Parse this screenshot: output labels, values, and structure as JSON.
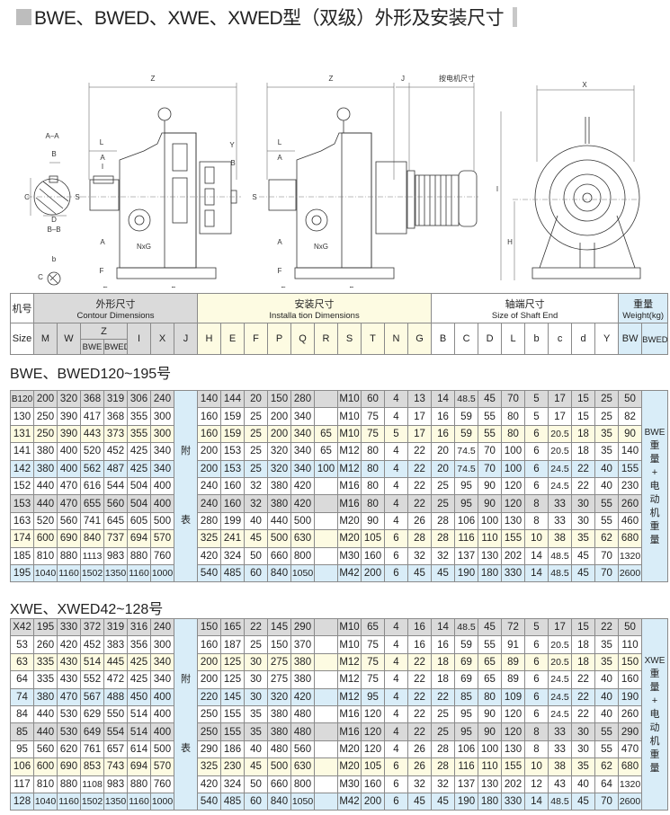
{
  "title": "BWE、BWED、XWE、XWED型（双级）外形及安装尺寸",
  "diagram": {
    "labels": {
      "Z": "Z",
      "J": "J",
      "motor_dims": "按电机尺寸",
      "X": "X",
      "AA": "A–A",
      "BB": "B–B",
      "B": "B",
      "C": "C",
      "D": "D",
      "b": "b",
      "c": "C",
      "d": "d",
      "L": "L",
      "A": "A",
      "I": "I",
      "S": "S",
      "Y": "Y",
      "NxG": "NxG",
      "E": "E",
      "F": "F",
      "P": "P",
      "R": "R",
      "M": "M",
      "H": "H",
      "Q": "Q",
      "T": "T",
      "W": "W"
    }
  },
  "header": {
    "model_cn": "机号",
    "contour_cn": "外形尺寸",
    "contour_en": "Contour Dimensions",
    "install_cn": "安装尺寸",
    "install_en": "Installa tion Dimensions",
    "shaft_cn": "轴端尺寸",
    "shaft_en": "Size of Shaft End",
    "weight_cn": "重量",
    "weight_en": "Weight(kg)",
    "size": "Size",
    "contour_cols": [
      "M",
      "W"
    ],
    "z": "Z",
    "z_sub": [
      "BWE",
      "BWED"
    ],
    "contour_cols2": [
      "I",
      "X",
      "J"
    ],
    "install_cols": [
      "H",
      "E",
      "F",
      "P",
      "Q",
      "R",
      "S",
      "T",
      "N",
      "G"
    ],
    "shaft_cols": [
      "B",
      "C",
      "D",
      "L",
      "b",
      "c",
      "d",
      "Y"
    ],
    "weight_bw": "BW",
    "weight_bwed": "BWED约"
  },
  "tables": [
    {
      "section_title": "BWE、BWED120~195号",
      "j_note": [
        "附",
        "表"
      ],
      "side_note": [
        "BWE",
        "重",
        "量",
        "+",
        "电",
        "动",
        "机",
        "重",
        "量"
      ],
      "row_colors": [
        "g",
        "w",
        "y",
        "w",
        "b",
        "w",
        "g",
        "w",
        "y",
        "w",
        "b"
      ],
      "rows": [
        [
          "B120",
          "200",
          "320",
          "368",
          "319",
          "306",
          "240",
          "140",
          "144",
          "20",
          "150",
          "280",
          "",
          "M10",
          "60",
          "4",
          "13",
          "14",
          "48.5",
          "45",
          "70",
          "5",
          "17",
          "15",
          "25",
          "50"
        ],
        [
          "130",
          "250",
          "390",
          "417",
          "368",
          "355",
          "300",
          "160",
          "159",
          "25",
          "200",
          "340",
          "",
          "M10",
          "75",
          "4",
          "17",
          "16",
          "59",
          "55",
          "80",
          "5",
          "17",
          "15",
          "25",
          "82"
        ],
        [
          "131",
          "250",
          "390",
          "443",
          "373",
          "355",
          "300",
          "160",
          "159",
          "25",
          "200",
          "340",
          "65",
          "M10",
          "75",
          "5",
          "17",
          "16",
          "59",
          "55",
          "80",
          "6",
          "20.5",
          "18",
          "35",
          "90"
        ],
        [
          "141",
          "380",
          "400",
          "520",
          "452",
          "425",
          "340",
          "200",
          "153",
          "25",
          "320",
          "340",
          "65",
          "M12",
          "80",
          "4",
          "22",
          "20",
          "74.5",
          "70",
          "100",
          "6",
          "20.5",
          "18",
          "35",
          "140"
        ],
        [
          "142",
          "380",
          "400",
          "562",
          "487",
          "425",
          "340",
          "200",
          "153",
          "25",
          "320",
          "340",
          "100",
          "M12",
          "80",
          "4",
          "22",
          "20",
          "74.5",
          "70",
          "100",
          "6",
          "24.5",
          "22",
          "40",
          "155"
        ],
        [
          "152",
          "440",
          "470",
          "616",
          "544",
          "504",
          "400",
          "240",
          "160",
          "32",
          "380",
          "420",
          "",
          "M16",
          "80",
          "4",
          "22",
          "25",
          "95",
          "90",
          "120",
          "6",
          "24.5",
          "22",
          "40",
          "230"
        ],
        [
          "153",
          "440",
          "470",
          "655",
          "560",
          "504",
          "400",
          "240",
          "160",
          "32",
          "380",
          "420",
          "",
          "M16",
          "80",
          "4",
          "22",
          "25",
          "95",
          "90",
          "120",
          "8",
          "33",
          "30",
          "55",
          "260"
        ],
        [
          "163",
          "520",
          "560",
          "741",
          "645",
          "605",
          "500",
          "280",
          "199",
          "40",
          "440",
          "500",
          "",
          "M20",
          "90",
          "4",
          "26",
          "28",
          "106",
          "100",
          "130",
          "8",
          "33",
          "30",
          "55",
          "460"
        ],
        [
          "174",
          "600",
          "690",
          "840",
          "737",
          "694",
          "570",
          "325",
          "241",
          "45",
          "500",
          "630",
          "",
          "M20",
          "105",
          "6",
          "28",
          "28",
          "116",
          "110",
          "155",
          "10",
          "38",
          "35",
          "62",
          "680"
        ],
        [
          "185",
          "810",
          "880",
          "1113",
          "983",
          "880",
          "760",
          "420",
          "324",
          "50",
          "660",
          "800",
          "",
          "M30",
          "160",
          "6",
          "32",
          "32",
          "137",
          "130",
          "202",
          "14",
          "48.5",
          "45",
          "70",
          "1320"
        ],
        [
          "195",
          "1040",
          "1160",
          "1502",
          "1350",
          "1160",
          "1000",
          "540",
          "485",
          "60",
          "840",
          "1050",
          "",
          "M42",
          "200",
          "6",
          "45",
          "45",
          "190",
          "180",
          "330",
          "14",
          "48.5",
          "45",
          "70",
          "2600"
        ]
      ]
    },
    {
      "section_title": "XWE、XWED42~128号",
      "j_note": [
        "附",
        "表"
      ],
      "side_note": [
        "XWE",
        "重",
        "量",
        "+",
        "电",
        "动",
        "机",
        "重",
        "量"
      ],
      "row_colors": [
        "g",
        "w",
        "y",
        "w",
        "b",
        "w",
        "g",
        "w",
        "y",
        "w",
        "b"
      ],
      "rows": [
        [
          "X42",
          "195",
          "330",
          "372",
          "319",
          "316",
          "240",
          "150",
          "165",
          "22",
          "145",
          "290",
          "",
          "M10",
          "65",
          "4",
          "16",
          "14",
          "48.5",
          "45",
          "72",
          "5",
          "17",
          "15",
          "22",
          "50"
        ],
        [
          "53",
          "260",
          "420",
          "452",
          "383",
          "356",
          "300",
          "160",
          "187",
          "25",
          "150",
          "370",
          "",
          "M10",
          "75",
          "4",
          "16",
          "16",
          "59",
          "55",
          "91",
          "6",
          "20.5",
          "18",
          "35",
          "110"
        ],
        [
          "63",
          "335",
          "430",
          "514",
          "445",
          "425",
          "340",
          "200",
          "125",
          "30",
          "275",
          "380",
          "",
          "M12",
          "75",
          "4",
          "22",
          "18",
          "69",
          "65",
          "89",
          "6",
          "20.5",
          "18",
          "35",
          "150"
        ],
        [
          "64",
          "335",
          "430",
          "552",
          "472",
          "425",
          "340",
          "200",
          "125",
          "30",
          "275",
          "380",
          "",
          "M12",
          "75",
          "4",
          "22",
          "18",
          "69",
          "65",
          "89",
          "6",
          "24.5",
          "22",
          "40",
          "160"
        ],
        [
          "74",
          "380",
          "470",
          "567",
          "488",
          "450",
          "400",
          "220",
          "145",
          "30",
          "320",
          "420",
          "",
          "M12",
          "95",
          "4",
          "22",
          "22",
          "85",
          "80",
          "109",
          "6",
          "24.5",
          "22",
          "40",
          "190"
        ],
        [
          "84",
          "440",
          "530",
          "629",
          "550",
          "514",
          "400",
          "250",
          "155",
          "35",
          "380",
          "480",
          "",
          "M16",
          "120",
          "4",
          "22",
          "25",
          "95",
          "90",
          "120",
          "6",
          "24.5",
          "22",
          "40",
          "260"
        ],
        [
          "85",
          "440",
          "530",
          "649",
          "554",
          "514",
          "400",
          "250",
          "155",
          "35",
          "380",
          "480",
          "",
          "M16",
          "120",
          "4",
          "22",
          "25",
          "95",
          "90",
          "120",
          "8",
          "33",
          "30",
          "55",
          "290"
        ],
        [
          "95",
          "560",
          "620",
          "761",
          "657",
          "614",
          "500",
          "290",
          "186",
          "40",
          "480",
          "560",
          "",
          "M20",
          "120",
          "4",
          "26",
          "28",
          "106",
          "100",
          "130",
          "8",
          "33",
          "30",
          "55",
          "470"
        ],
        [
          "106",
          "600",
          "690",
          "853",
          "743",
          "694",
          "570",
          "325",
          "230",
          "45",
          "500",
          "630",
          "",
          "M20",
          "105",
          "6",
          "26",
          "28",
          "116",
          "110",
          "155",
          "10",
          "38",
          "35",
          "62",
          "680"
        ],
        [
          "117",
          "810",
          "880",
          "1108",
          "983",
          "880",
          "760",
          "420",
          "324",
          "50",
          "660",
          "800",
          "",
          "M30",
          "160",
          "6",
          "32",
          "32",
          "137",
          "130",
          "202",
          "12",
          "43",
          "40",
          "64",
          "1320"
        ],
        [
          "128",
          "1040",
          "1160",
          "1502",
          "1350",
          "1160",
          "1000",
          "540",
          "485",
          "60",
          "840",
          "1050",
          "",
          "M42",
          "200",
          "6",
          "45",
          "45",
          "190",
          "180",
          "330",
          "14",
          "48.5",
          "45",
          "70",
          "2600"
        ]
      ]
    }
  ],
  "colors": {
    "gray_row": "#dadada",
    "yellow_row": "#fdfbe2",
    "blue_row": "#d9edf8",
    "header_gray": "#dadada",
    "header_yellow": "#fdfbe2",
    "header_blue": "#d9edf8"
  }
}
